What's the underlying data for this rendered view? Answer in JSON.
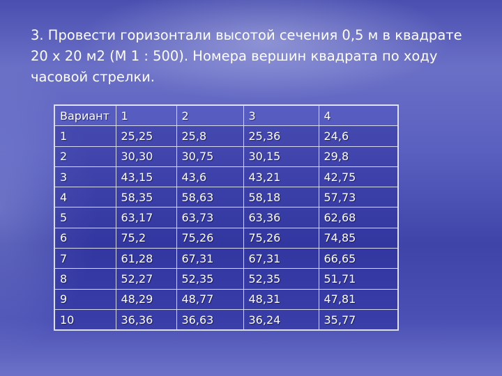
{
  "slide": {
    "title": "3. Провести горизонтали высотой сечения  0,5 м  в квадрате 20 х 20 м2  (М 1 : 500). Номера вершин квадрата по ходу часовой стрелки.",
    "table": {
      "headers": [
        "Вариант",
        "1",
        "2",
        "3",
        "4"
      ],
      "rows": [
        [
          "1",
          "25,25",
          "25,8",
          "25,36",
          "24,6"
        ],
        [
          "2",
          "30,30",
          "30,75",
          "30,15",
          "29,8"
        ],
        [
          "3",
          "43,15",
          "43,6",
          "43,21",
          "42,75"
        ],
        [
          "4",
          "58,35",
          "58,63",
          "58,18",
          "57,73"
        ],
        [
          "5",
          "63,17",
          "63,73",
          "63,36",
          "62,68"
        ],
        [
          "6",
          "75,2",
          "75,26",
          "75,26",
          "74,85"
        ],
        [
          "7",
          "61,28",
          "67,31",
          "67,31",
          "66,65"
        ],
        [
          "8",
          "52,27",
          "52,35",
          "52,35",
          "51,71"
        ],
        [
          "9",
          "48,29",
          "48,77",
          "48,31",
          "47,81"
        ],
        [
          "10",
          "36,36",
          "36,63",
          "36,24",
          "35,77"
        ]
      ]
    }
  }
}
